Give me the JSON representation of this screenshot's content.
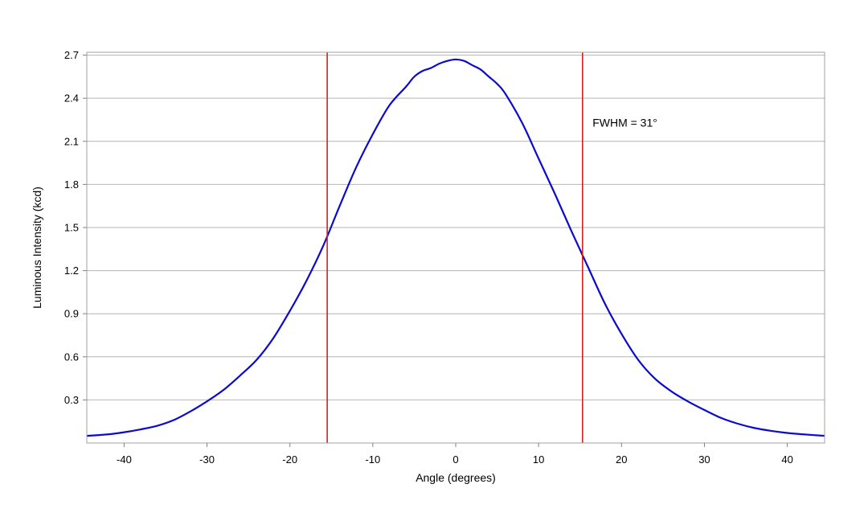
{
  "chart_data": {
    "type": "line",
    "title": "",
    "xlabel": "Angle (degrees)",
    "ylabel": "Luminous Intensity (kcd)",
    "xlim": [
      -44.5,
      44.5
    ],
    "ylim": [
      0,
      2.72
    ],
    "xticks": [
      -40,
      -30,
      -20,
      -10,
      0,
      10,
      20,
      30,
      40
    ],
    "yticks": [
      0.3,
      0.6,
      0.9,
      1.2,
      1.5,
      1.8,
      2.1,
      2.4,
      2.7
    ],
    "xtick_labels": [
      "-40",
      "-30",
      "-20",
      "-10",
      "0",
      "10",
      "20",
      "30",
      "40"
    ],
    "ytick_labels": [
      "0.3",
      "0.6",
      "0.9",
      "1.2",
      "1.5",
      "1.8",
      "2.1",
      "2.4",
      "2.7"
    ],
    "grid": "horizontal",
    "series": [
      {
        "color": "#0a0ad0",
        "x": [
          -44.5,
          -42,
          -40,
          -38,
          -36,
          -34,
          -32,
          -30,
          -28,
          -26,
          -24,
          -22,
          -20,
          -18,
          -16,
          -14,
          -12,
          -10,
          -8,
          -6,
          -5,
          -4,
          -3,
          -2,
          -1,
          0,
          1,
          2,
          3,
          4,
          5,
          6,
          8,
          10,
          12,
          14,
          16,
          18,
          20,
          22,
          24,
          26,
          28,
          30,
          32,
          34,
          36,
          38,
          40,
          42,
          44.5
        ],
        "y": [
          0.05,
          0.06,
          0.075,
          0.095,
          0.12,
          0.16,
          0.22,
          0.29,
          0.37,
          0.47,
          0.58,
          0.73,
          0.92,
          1.13,
          1.37,
          1.65,
          1.92,
          2.15,
          2.35,
          2.48,
          2.55,
          2.59,
          2.61,
          2.64,
          2.66,
          2.67,
          2.66,
          2.63,
          2.6,
          2.55,
          2.5,
          2.43,
          2.23,
          1.98,
          1.73,
          1.47,
          1.22,
          0.97,
          0.76,
          0.58,
          0.45,
          0.36,
          0.29,
          0.23,
          0.175,
          0.135,
          0.105,
          0.085,
          0.07,
          0.06,
          0.05
        ]
      }
    ],
    "vlines": [
      {
        "x": -15.5,
        "color": "#d42020"
      },
      {
        "x": 15.3,
        "color": "#d42020"
      }
    ],
    "annotations": [
      {
        "text": "FWHM = 31°",
        "x": 16.5,
        "y": 2.23
      }
    ]
  }
}
